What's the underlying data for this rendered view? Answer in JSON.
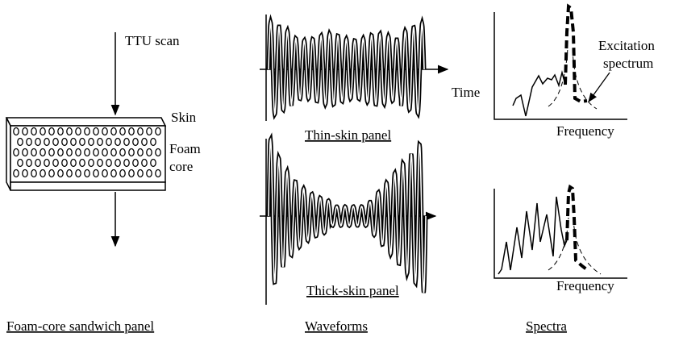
{
  "panel": {
    "scan_label": "TTU scan",
    "skin_label": "Skin",
    "core_label": [
      "Foam",
      "core"
    ],
    "caption": "Foam-core sandwich panel"
  },
  "waveforms": {
    "time_label": "Time",
    "thin_caption": "Thin-skin panel",
    "thick_caption": "Thick-skin panel",
    "caption": "Waveforms"
  },
  "spectra": {
    "excitation_label": [
      "Excitation",
      "spectrum"
    ],
    "frequency_labels": [
      "Frequency",
      "Frequency"
    ],
    "caption": "Spectra"
  }
}
